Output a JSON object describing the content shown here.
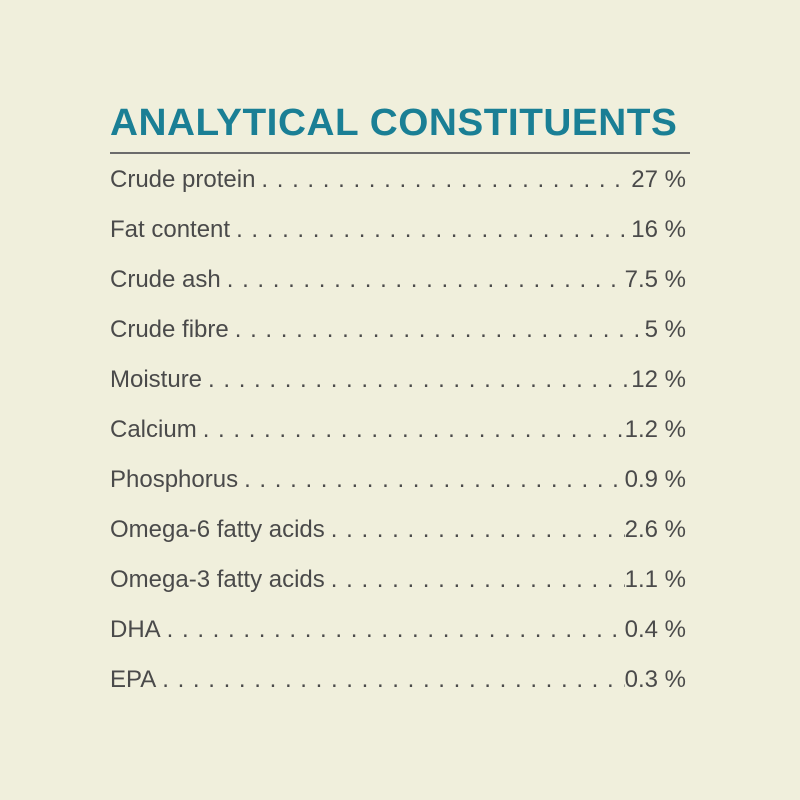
{
  "title": "ANALYTICAL CONSTITUENTS",
  "colors": {
    "background": "#f0efdc",
    "title": "#1a7f95",
    "text": "#4a4a4a"
  },
  "rows": [
    {
      "label": "Crude protein",
      "value": "27 %"
    },
    {
      "label": "Fat content",
      "value": "16 %"
    },
    {
      "label": "Crude ash",
      "value": "7.5 %"
    },
    {
      "label": "Crude fibre",
      "value": "5 %"
    },
    {
      "label": "Moisture",
      "value": "12 %"
    },
    {
      "label": "Calcium",
      "value": "1.2 %"
    },
    {
      "label": "Phosphorus",
      "value": "0.9 %"
    },
    {
      "label": "Omega-6 fatty acids",
      "value": "2.6 %"
    },
    {
      "label": "Omega-3 fatty acids",
      "value": "1.1 %"
    },
    {
      "label": "DHA",
      "value": "0.4 %"
    },
    {
      "label": "EPA",
      "value": "0.3 %"
    }
  ]
}
